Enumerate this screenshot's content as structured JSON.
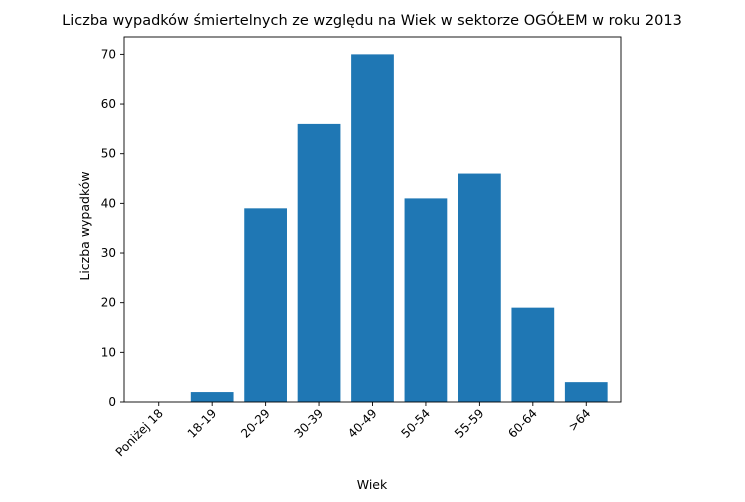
{
  "chart_data": {
    "type": "bar",
    "title": "Liczba wypadków śmiertelnych ze względu na Wiek w sektorze OGÓŁEM   w roku 2013",
    "xlabel": "Wiek",
    "ylabel": "Liczba wypadków",
    "categories": [
      "Poniżej 18",
      "18-19",
      "20-29",
      "30-39",
      "40-49",
      "50-54",
      "55-59",
      "60-64",
      ">64"
    ],
    "values": [
      0,
      2,
      39,
      56,
      70,
      41,
      46,
      19,
      4
    ],
    "ylim": [
      0,
      73.5
    ],
    "yticks": [
      0,
      10,
      20,
      30,
      40,
      50,
      60,
      70
    ],
    "grid": false,
    "legend": "none",
    "bar_color": "#1f77b4"
  }
}
